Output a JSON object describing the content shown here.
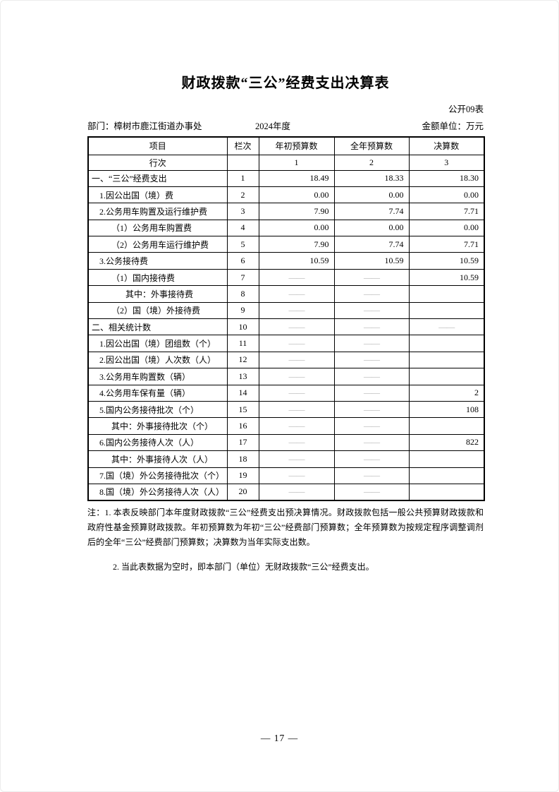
{
  "page": {
    "title": "财政拨款“三公”经费支出决算表",
    "form_no": "公开09表",
    "department": "部门：樟树市鹿江街道办事处",
    "year": "2024年度",
    "unit": "金额单位：万元",
    "page_number": "— 17 —"
  },
  "table": {
    "headers": [
      "项目",
      "栏次",
      "年初预算数",
      "全年预算数",
      "决算数"
    ],
    "colnum_row": {
      "label": "行次",
      "col1": "1",
      "col2": "2",
      "col3": "3"
    },
    "rows": [
      {
        "label": "一、“三公”经费支出",
        "indent": 0,
        "line": "1",
        "initial": "18.49",
        "annual": "18.33",
        "final": "18.30"
      },
      {
        "label": "1.因公出国（境）费",
        "indent": 1,
        "line": "2",
        "initial": "0.00",
        "annual": "0.00",
        "final": "0.00"
      },
      {
        "label": "2.公务用车购置及运行维护费",
        "indent": 1,
        "line": "3",
        "initial": "7.90",
        "annual": "7.74",
        "final": "7.71"
      },
      {
        "label": "（1）公务用车购置费",
        "indent": 2,
        "line": "4",
        "initial": "0.00",
        "annual": "0.00",
        "final": "0.00"
      },
      {
        "label": "（2）公务用车运行维护费",
        "indent": 2,
        "line": "5",
        "initial": "7.90",
        "annual": "7.74",
        "final": "7.71"
      },
      {
        "label": "3.公务接待费",
        "indent": 1,
        "line": "6",
        "initial": "10.59",
        "annual": "10.59",
        "final": "10.59"
      },
      {
        "label": "（1）国内接待费",
        "indent": 2,
        "line": "7",
        "initial": "——",
        "annual": "——",
        "final": "10.59"
      },
      {
        "label": "其中：外事接待费",
        "indent": 3,
        "line": "8",
        "initial": "——",
        "annual": "——",
        "final": ""
      },
      {
        "label": "（2）国（境）外接待费",
        "indent": 2,
        "line": "9",
        "initial": "——",
        "annual": "——",
        "final": ""
      },
      {
        "label": "二、相关统计数",
        "indent": 0,
        "line": "10",
        "initial": "——",
        "annual": "——",
        "final": "——"
      },
      {
        "label": "1.因公出国（境）团组数（个）",
        "indent": 1,
        "line": "11",
        "initial": "——",
        "annual": "——",
        "final": ""
      },
      {
        "label": "2.因公出国（境）人次数（人）",
        "indent": 1,
        "line": "12",
        "initial": "——",
        "annual": "——",
        "final": ""
      },
      {
        "label": "3.公务用车购置数（辆）",
        "indent": 1,
        "line": "13",
        "initial": "——",
        "annual": "——",
        "final": ""
      },
      {
        "label": "4.公务用车保有量（辆）",
        "indent": 1,
        "line": "14",
        "initial": "——",
        "annual": "——",
        "final": "2"
      },
      {
        "label": "5.国内公务接待批次（个）",
        "indent": 1,
        "line": "15",
        "initial": "——",
        "annual": "——",
        "final": "108"
      },
      {
        "label": "其中：外事接待批次（个）",
        "indent": 2,
        "line": "16",
        "initial": "——",
        "annual": "——",
        "final": ""
      },
      {
        "label": "6.国内公务接待人次（人）",
        "indent": 1,
        "line": "17",
        "initial": "——",
        "annual": "——",
        "final": "822"
      },
      {
        "label": "其中：外事接待人次（人）",
        "indent": 2,
        "line": "18",
        "initial": "——",
        "annual": "——",
        "final": ""
      },
      {
        "label": "7.国（境）外公务接待批次（个）",
        "indent": 1,
        "line": "19",
        "initial": "——",
        "annual": "——",
        "final": ""
      },
      {
        "label": "8.国（境）外公务接待人次（人）",
        "indent": 1,
        "line": "20",
        "initial": "——",
        "annual": "——",
        "final": ""
      }
    ]
  },
  "notes": {
    "note1": "注：1. 本表反映部门本年度财政拨款“三公”经费支出预决算情况。财政拨款包括一般公共预算财政拨款和政府性基金预算财政拨款。年初预算数为年初“三公”经费部门预算数；全年预算数为按规定程序调整调剂后的全年“三公”经费部门预算数；决算数为当年实际支出数。",
    "note2": "2. 当此表数据为空时，即本部门（单位）无财政拨款“三公”经费支出。"
  }
}
